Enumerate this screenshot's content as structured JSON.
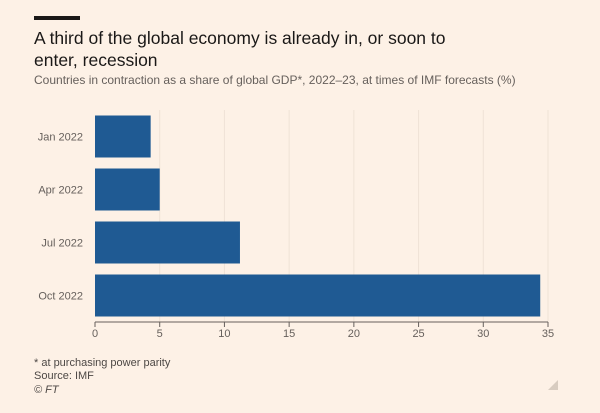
{
  "header": {
    "title": "A third of the global economy is already in, or soon to enter, recession",
    "subtitle": "Countries in contraction as a share of global GDP*, 2022–23, at times of IMF forecasts (%)"
  },
  "footer": {
    "footnote": "* at purchasing power parity",
    "source": "Source: IMF",
    "copyright": "© FT"
  },
  "colors": {
    "bar": "#1f5a93",
    "grid": "#efe2d6",
    "axis": "#66605c",
    "tick_text": "#66605c",
    "background": "#fdf1e6"
  },
  "chart_data": {
    "type": "bar",
    "orientation": "horizontal",
    "categories": [
      "Jan 2022",
      "Apr 2022",
      "Jul 2022",
      "Oct 2022"
    ],
    "values": [
      4.3,
      5.0,
      11.2,
      34.4
    ],
    "xlim": [
      0,
      35
    ],
    "xticks": [
      0,
      5,
      10,
      15,
      20,
      25,
      30,
      35
    ],
    "title": "A third of the global economy is already in, or soon to enter, recession",
    "xlabel": "",
    "ylabel": "",
    "grid": true
  }
}
